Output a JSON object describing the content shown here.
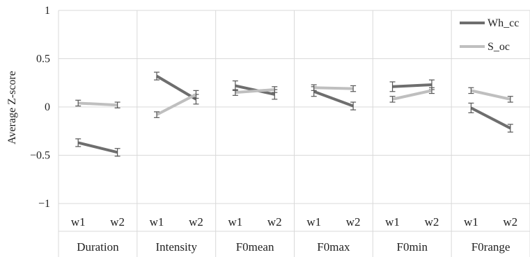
{
  "chart_data": {
    "type": "line",
    "ylabel": "Average Z-score",
    "ylim": [
      -1,
      1
    ],
    "yticks": [
      1,
      0.5,
      0,
      -0.5,
      -1
    ],
    "ytick_labels": [
      "1",
      "0.5",
      "0",
      "−0.5",
      "−1"
    ],
    "groups": [
      "Duration",
      "Intensity",
      "F0mean",
      "F0max",
      "F0min",
      "F0range"
    ],
    "subcategories": [
      "w1",
      "w2"
    ],
    "legend_position": "top-right",
    "grid": true,
    "series": [
      {
        "name": "Wh_cc",
        "color": "#6e6e6e",
        "values": [
          [
            -0.37,
            -0.47
          ],
          [
            0.32,
            0.08
          ],
          [
            0.22,
            0.13
          ],
          [
            0.16,
            0.01
          ],
          [
            0.21,
            0.23
          ],
          [
            -0.01,
            -0.22
          ]
        ],
        "errors": [
          [
            0.04,
            0.04
          ],
          [
            0.04,
            0.05
          ],
          [
            0.05,
            0.05
          ],
          [
            0.05,
            0.04
          ],
          [
            0.05,
            0.05
          ],
          [
            0.05,
            0.04
          ]
        ]
      },
      {
        "name": "S_oc",
        "color": "#bfbfbf",
        "values": [
          [
            0.04,
            0.02
          ],
          [
            -0.08,
            0.13
          ],
          [
            0.15,
            0.18
          ],
          [
            0.2,
            0.19
          ],
          [
            0.08,
            0.17
          ],
          [
            0.17,
            0.08
          ]
        ],
        "errors": [
          [
            0.03,
            0.03
          ],
          [
            0.03,
            0.04
          ],
          [
            0.03,
            0.03
          ],
          [
            0.03,
            0.03
          ],
          [
            0.03,
            0.03
          ],
          [
            0.03,
            0.03
          ]
        ]
      }
    ]
  }
}
